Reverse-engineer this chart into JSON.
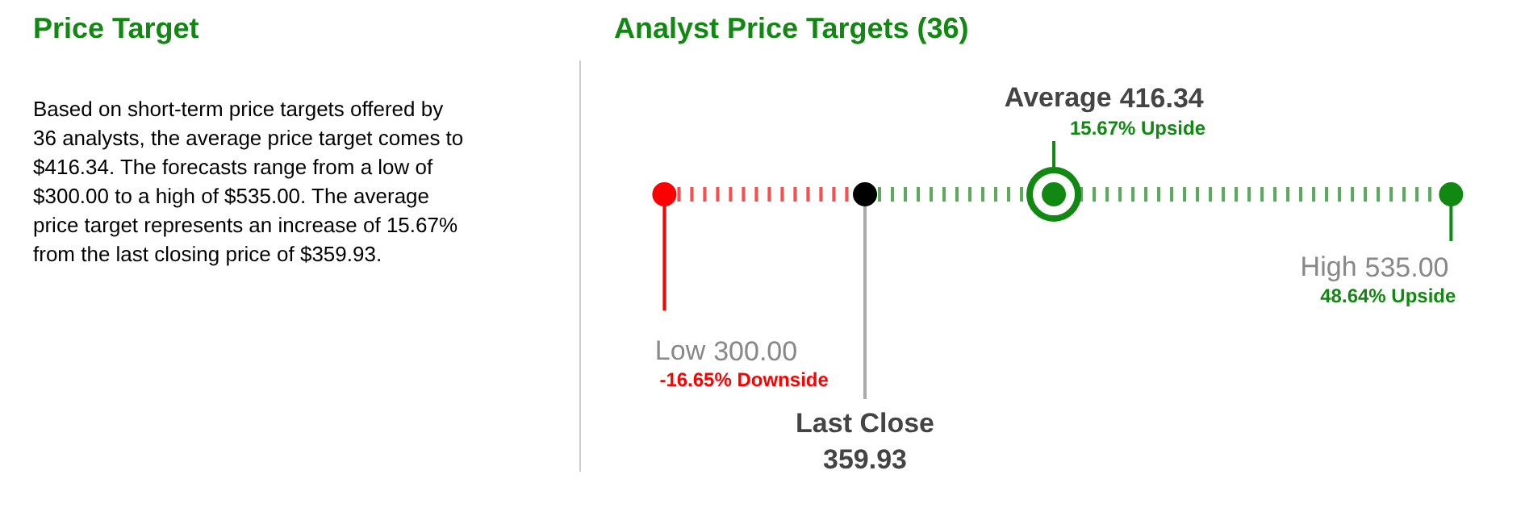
{
  "chart_data": [
    {
      "type": "other",
      "title": "Price Target",
      "annotations": [
        "Based on short-term price targets offered by 36 analysts, the average price target comes to $416.34. The forecasts range from a low of $300.00 to a high of $535.00. The average price target represents an increase of 15.67% from the last closing price of $359.93."
      ]
    },
    {
      "type": "other",
      "title": "Analyst Price Targets (36)",
      "categories": [
        "Low",
        "Last Close",
        "Average",
        "High"
      ],
      "values": [
        300,
        359.93,
        416.34,
        535
      ],
      "value_labels": [
        "300.00",
        "359.93",
        "416.34",
        "535.00"
      ],
      "colors": [
        "#ff0000",
        "#000000",
        "#118811",
        "#118811"
      ],
      "annotations": [
        "-16.65% Downside",
        "15.67% Upside",
        "48.64% Upside"
      ]
    }
  ]
}
